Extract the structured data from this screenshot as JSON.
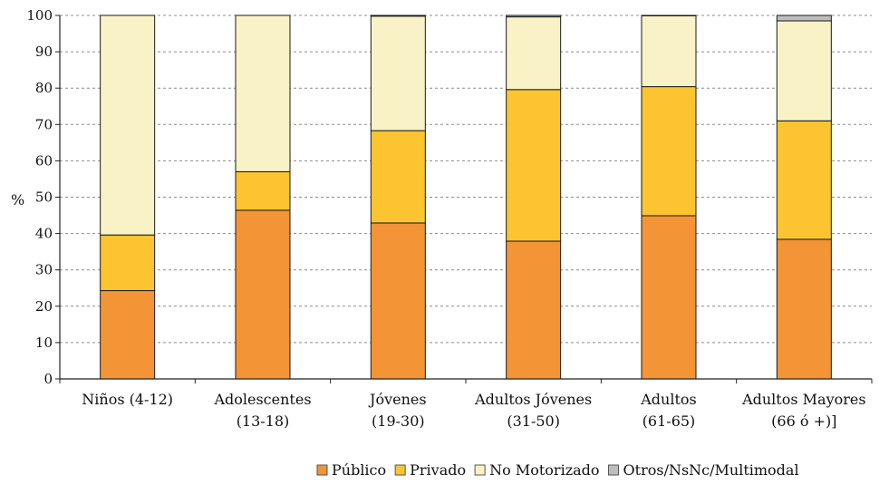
{
  "chart_data": {
    "type": "bar",
    "stacked": true,
    "title": "",
    "xlabel": "",
    "ylabel": "%",
    "ylim": [
      0,
      100
    ],
    "yticks": [
      0,
      10,
      20,
      30,
      40,
      50,
      60,
      70,
      80,
      90,
      100
    ],
    "grid": "horizontal dashed",
    "legend_position": "bottom-right",
    "categories": [
      [
        "Niños (4-12)"
      ],
      [
        "Adolescentes",
        "(13-18)"
      ],
      [
        "Jóvenes",
        "(19-30)"
      ],
      [
        "Adultos Jóvenes",
        "(31-50)"
      ],
      [
        "Adultos",
        "(61-65)"
      ],
      [
        "Adultos Mayores",
        "(66 ó +)]"
      ]
    ],
    "series": [
      {
        "name": "Público",
        "color": "#F39436",
        "values": [
          24.3,
          46.4,
          42.9,
          37.9,
          44.9,
          38.4
        ]
      },
      {
        "name": "Privado",
        "color": "#FCC430",
        "values": [
          15.3,
          10.6,
          25.4,
          41.7,
          35.5,
          32.6
        ]
      },
      {
        "name": "No Motorizado",
        "color": "#F8F2C6",
        "values": [
          60.4,
          43.0,
          31.5,
          20.0,
          19.5,
          27.5
        ]
      },
      {
        "name": "Otros/NsNc/Multimodal",
        "color": "#BDBDBD",
        "values": [
          0.0,
          0.0,
          0.2,
          0.4,
          0.1,
          1.5
        ]
      }
    ]
  }
}
